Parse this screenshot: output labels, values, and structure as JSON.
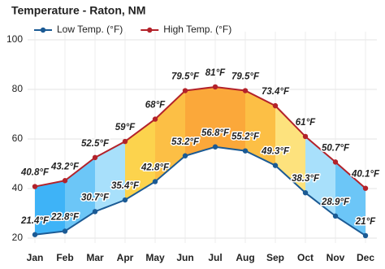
{
  "chart_data": {
    "type": "line",
    "title": "Temperature - Raton, NM",
    "categories": [
      "Jan",
      "Feb",
      "Mar",
      "Apr",
      "May",
      "Jun",
      "Jul",
      "Aug",
      "Sep",
      "Oct",
      "Nov",
      "Dec"
    ],
    "series": [
      {
        "name": "Low Temp. (°F)",
        "color": "#1b5a94",
        "values": [
          21.4,
          22.8,
          30.7,
          35.4,
          42.8,
          53.2,
          56.8,
          55.2,
          49.3,
          38.3,
          28.9,
          21
        ],
        "value_labels": [
          "21.4°F",
          "22.8°F",
          "30.7°F",
          "35.4°F",
          "42.8°F",
          "53.2°F",
          "56.8°F",
          "55.2°F",
          "49.3°F",
          "38.3°F",
          "28.9°F",
          "21°F"
        ]
      },
      {
        "name": "High Temp. (°F)",
        "color": "#b3222a",
        "values": [
          40.8,
          43.2,
          52.5,
          59,
          68,
          79.5,
          81,
          79.5,
          73.4,
          61,
          50.7,
          40.1
        ],
        "value_labels": [
          "40.8°F",
          "43.2°F",
          "52.5°F",
          "59°F",
          "68°F",
          "79.5°F",
          "81°F",
          "79.5°F",
          "73.4°F",
          "61°F",
          "50.7°F",
          "40.1°F"
        ]
      }
    ],
    "band_colors": [
      "#3eb3f7",
      "#6cc6f7",
      "#a8e0fb",
      "#fcd34d",
      "#fcbf45",
      "#fba83a",
      "#fba83a",
      "#fcbf45",
      "#fde27d",
      "#a8e0fb",
      "#6cc6f7"
    ],
    "ylim": [
      20,
      100
    ],
    "yticks": [
      20,
      40,
      60,
      80,
      100
    ],
    "grid": true,
    "legend": "top-left"
  }
}
